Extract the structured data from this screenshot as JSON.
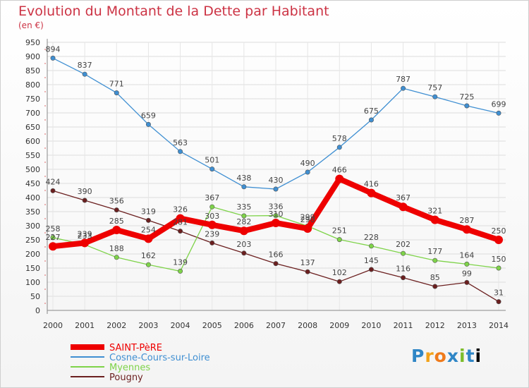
{
  "header": {
    "title": "Evolution du Montant de la Dette par Habitant",
    "subtitle": "(en €)"
  },
  "brand": "Proxiti",
  "chart_data": {
    "type": "line",
    "x": [
      "2000",
      "2001",
      "2002",
      "2003",
      "2004",
      "2005",
      "2006",
      "2007",
      "2008",
      "2009",
      "2010",
      "2011",
      "2012",
      "2013",
      "2014"
    ],
    "ylim": [
      0,
      950
    ],
    "yticks": [
      0,
      50,
      100,
      150,
      200,
      250,
      300,
      350,
      400,
      450,
      500,
      550,
      600,
      650,
      700,
      750,
      800,
      850,
      900,
      950
    ],
    "grid": true,
    "legend_position": "bottom-left",
    "series": [
      {
        "name": "SAINT-PèRE",
        "color": "#ee0000",
        "values": [
          227,
          239,
          285,
          254,
          326,
          303,
          282,
          310,
          290,
          466,
          416,
          367,
          321,
          287,
          250
        ]
      },
      {
        "name": "Cosne-Cours-sur-Loire",
        "color": "#3f8fd2",
        "values": [
          894,
          837,
          771,
          659,
          563,
          501,
          438,
          430,
          490,
          578,
          675,
          787,
          757,
          725,
          699
        ]
      },
      {
        "name": "Myennes",
        "color": "#7ed349",
        "values": [
          258,
          233,
          188,
          162,
          139,
          367,
          335,
          336,
          299,
          251,
          228,
          202,
          177,
          164,
          150
        ]
      },
      {
        "name": "Pougny",
        "color": "#6b1f1f",
        "values": [
          424,
          390,
          356,
          319,
          281,
          239,
          203,
          166,
          137,
          102,
          145,
          116,
          85,
          99,
          31
        ]
      }
    ]
  }
}
